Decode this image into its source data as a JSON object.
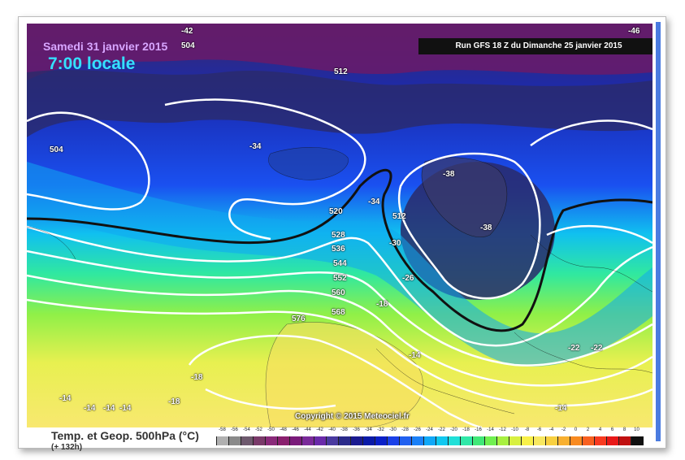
{
  "header": {
    "run_title": "Run GFS 18 Z du Dimanche 25 janvier 2015",
    "date_line": "Samedi 31 janvier 2015",
    "time_line": "7:00 locale"
  },
  "copyright": "Copyright © 2015 Meteociel.fr",
  "legend": {
    "title": "Temp. et Geop. 500hPa (°C)",
    "forecast": "(+ 132h)",
    "ticks": [
      "-58",
      "-56",
      "-54",
      "-52",
      "-50",
      "-48",
      "-46",
      "-44",
      "-42",
      "-40",
      "-38",
      "-36",
      "-34",
      "-32",
      "-30",
      "-28",
      "-26",
      "-24",
      "-22",
      "-20",
      "-18",
      "-16",
      "-14",
      "-12",
      "-10",
      "-8",
      "-6",
      "-4",
      "-2",
      "0",
      "2",
      "4",
      "6",
      "8",
      "10"
    ],
    "colors": [
      "#b0b0b0",
      "#8a8a8a",
      "#6e5a6e",
      "#7a3a6a",
      "#8a2a7a",
      "#8a1f6e",
      "#7a1a7a",
      "#7a2a9a",
      "#6a2aaa",
      "#4a3aa0",
      "#2a2a8a",
      "#1a1a90",
      "#0a1aa8",
      "#0a20c8",
      "#1a40e8",
      "#2060f0",
      "#1a80f8",
      "#10a8f8",
      "#10c8f0",
      "#20e0d8",
      "#30e8a8",
      "#40e878",
      "#70f050",
      "#a8f040",
      "#d8f040",
      "#f8f048",
      "#f8e860",
      "#f8d040",
      "#f8b030",
      "#f88a20",
      "#f86020",
      "#f83a20",
      "#e81818",
      "#c01010",
      "#101010"
    ]
  },
  "map_labels": {
    "geopotential": [
      "504",
      "512",
      "520",
      "528",
      "536",
      "544",
      "552",
      "560",
      "568",
      "576",
      "512",
      "504"
    ],
    "temperature": [
      "-42",
      "-34",
      "-38",
      "-38",
      "-34",
      "-30",
      "-26",
      "-18",
      "-14",
      "-18",
      "-22",
      "-22",
      "-18",
      "-14",
      "-14",
      "-14",
      "-14",
      "-14",
      "-46"
    ]
  }
}
